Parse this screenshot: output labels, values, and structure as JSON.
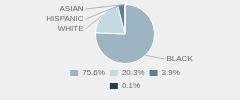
{
  "chart_data": {
    "type": "pie",
    "categories": [
      "BLACK",
      "WHITE",
      "HISPANIC",
      "ASIAN"
    ],
    "values": [
      75.6,
      20.3,
      3.9,
      0.1
    ],
    "value_labels": [
      "75.6%",
      "20.3%",
      "3.9%",
      "0.1%"
    ],
    "colors": [
      "#9db5c2",
      "#c5d9e3",
      "#5a7f96",
      "#1e3f58"
    ],
    "legend": "bottom"
  }
}
